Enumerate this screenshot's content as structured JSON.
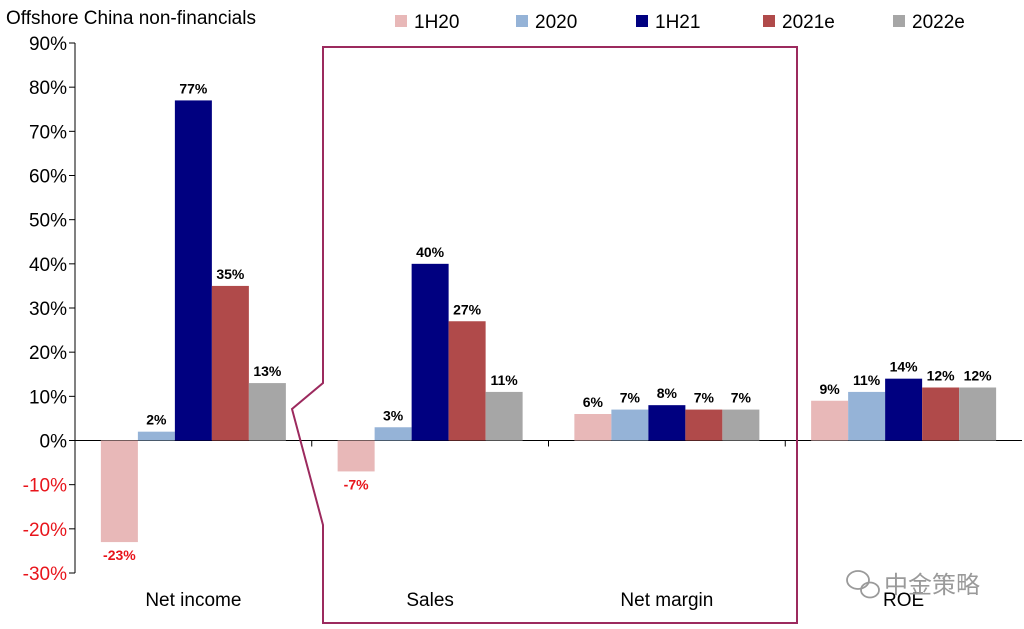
{
  "chart_data": {
    "type": "bar",
    "title": "Offshore China non-financials",
    "categories": [
      "Net income",
      "Sales",
      "Net margin",
      "ROE"
    ],
    "series": [
      {
        "name": "1H20",
        "color": "#e8b8b8",
        "values": [
          -23,
          -7,
          6,
          9
        ],
        "labels": [
          "-23%",
          "-7%",
          "6%",
          "9%"
        ]
      },
      {
        "name": "2020",
        "color": "#95b3d7",
        "values": [
          2,
          3,
          7,
          11
        ],
        "labels": [
          "2%",
          "3%",
          "7%",
          "11%"
        ]
      },
      {
        "name": "1H21",
        "color": "#000080",
        "values": [
          77,
          40,
          8,
          14
        ],
        "labels": [
          "77%",
          "40%",
          "8%",
          "14%"
        ]
      },
      {
        "name": "2021e",
        "color": "#b04a4a",
        "values": [
          35,
          27,
          7,
          12
        ],
        "labels": [
          "35%",
          "27%",
          "7%",
          "12%"
        ]
      },
      {
        "name": "2022e",
        "color": "#a6a6a6",
        "values": [
          13,
          11,
          7,
          12
        ],
        "labels": [
          "13%",
          "11%",
          "7%",
          "12%"
        ]
      }
    ],
    "ylim": [
      -30,
      90
    ],
    "ytick_labels": [
      "90%",
      "80%",
      "70%",
      "60%",
      "50%",
      "40%",
      "30%",
      "20%",
      "10%",
      "0%",
      "-10%",
      "-20%",
      "-30%"
    ],
    "ytick_values": [
      90,
      80,
      70,
      60,
      50,
      40,
      30,
      20,
      10,
      0,
      -10,
      -20,
      -30
    ],
    "legend_position": "top",
    "negative_label_color": "#e8141b",
    "highlight_box_color": "#9c2a5e",
    "grid": false
  },
  "watermark": "中金策略"
}
